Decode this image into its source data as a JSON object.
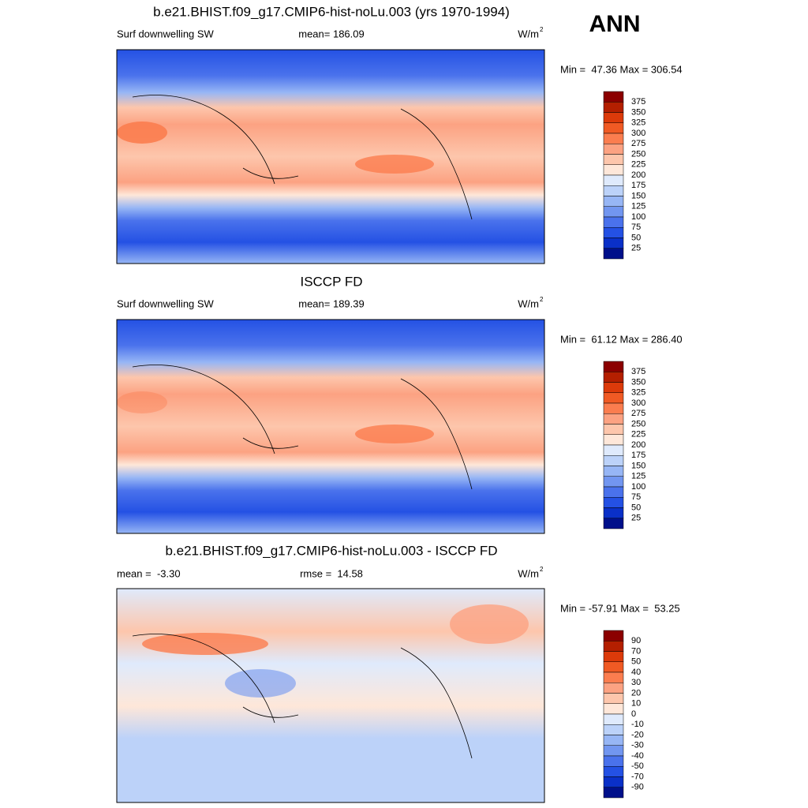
{
  "season": "ANN",
  "panels": [
    {
      "title": "b.e21.BHIST.f09_g17.CMIP6-hist-noLu.003 (yrs 1970-1994)",
      "left": "Surf downwelling SW",
      "center": "mean= 186.09",
      "units": "W/m",
      "units_exp": "2",
      "minmax": "Min =  47.36 Max = 306.54",
      "colorbar": [
        "375",
        "350",
        "325",
        "300",
        "275",
        "250",
        "225",
        "200",
        "175",
        "150",
        "125",
        "100",
        "75",
        "50",
        "25"
      ]
    },
    {
      "title": "ISCCP FD",
      "left": "Surf downwelling SW",
      "center": "mean= 189.39",
      "units": "W/m",
      "units_exp": "2",
      "minmax": "Min =  61.12 Max = 286.40",
      "colorbar": [
        "375",
        "350",
        "325",
        "300",
        "275",
        "250",
        "225",
        "200",
        "175",
        "150",
        "125",
        "100",
        "75",
        "50",
        "25"
      ]
    },
    {
      "title": "b.e21.BHIST.f09_g17.CMIP6-hist-noLu.003 - ISCCP FD",
      "left": "mean =  -3.30",
      "center": "rmse =  14.58",
      "units": "W/m",
      "units_exp": "2",
      "minmax": "Min = -57.91 Max =  53.25",
      "colorbar": [
        "90",
        "70",
        "50",
        "40",
        "30",
        "20",
        "10",
        "0",
        "-10",
        "-20",
        "-30",
        "-40",
        "-50",
        "-70",
        "-90"
      ]
    }
  ]
}
